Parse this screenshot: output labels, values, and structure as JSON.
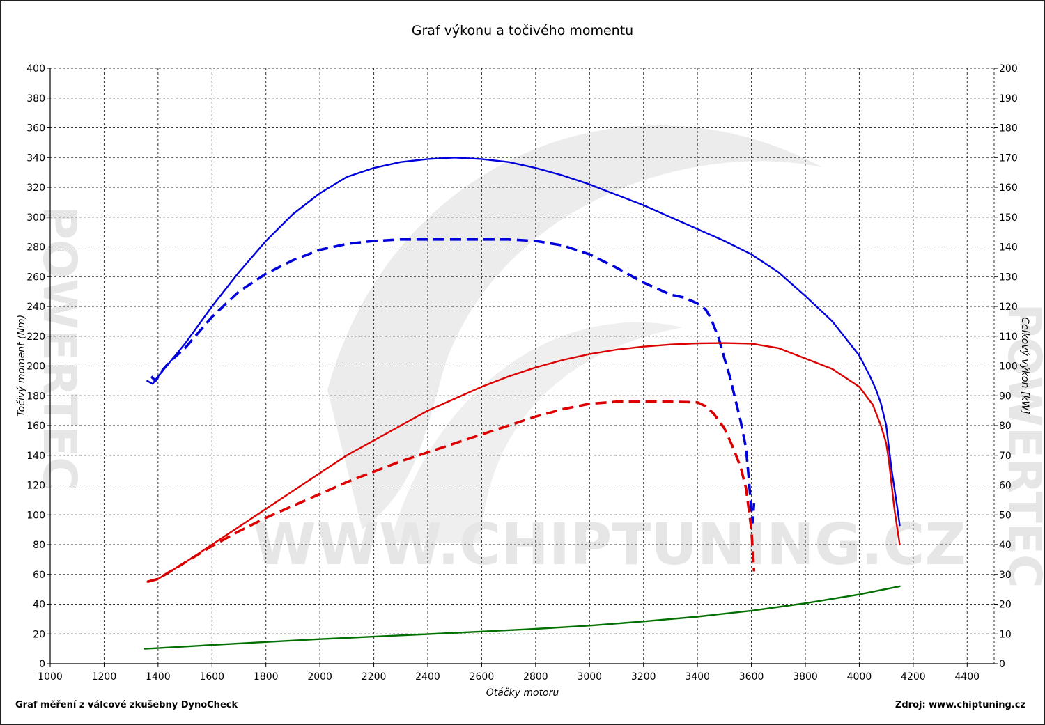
{
  "title": "Graf výkonu a točivého momentu",
  "footer_left": "Graf měření z válcové zkušebny DynoCheck",
  "footer_right": "Zdroj: www.chiptuning.cz",
  "watermark": {
    "center": "WWW.CHIPTUNING.CZ",
    "side": "POWERTEC"
  },
  "chart_data": {
    "type": "line",
    "title": "Graf výkonu a točivého momentu",
    "xlabel": "Otáčky motoru",
    "ylabel_left": "Točivý moment (Nm)",
    "ylabel_right": "Celkový výkon [kW]",
    "xlim": [
      1000,
      4500
    ],
    "ylim_left": [
      0,
      400
    ],
    "ylim_right": [
      0,
      200
    ],
    "x_ticks": [
      1000,
      1200,
      1400,
      1600,
      1800,
      2000,
      2200,
      2400,
      2600,
      2800,
      3000,
      3200,
      3400,
      3600,
      3800,
      4000,
      4200,
      4400
    ],
    "y_ticks_left": [
      0,
      20,
      40,
      60,
      80,
      100,
      120,
      140,
      160,
      180,
      200,
      220,
      240,
      260,
      280,
      300,
      320,
      340,
      360,
      380,
      400
    ],
    "y_ticks_right": [
      0,
      10,
      20,
      30,
      40,
      50,
      60,
      70,
      80,
      90,
      100,
      110,
      120,
      130,
      140,
      150,
      160,
      170,
      180,
      190,
      200
    ],
    "grid": true,
    "series": [
      {
        "color": "#0000dd",
        "style": "solid",
        "axis": "left",
        "x": [
          1360,
          1380,
          1400,
          1450,
          1500,
          1600,
          1700,
          1800,
          1900,
          2000,
          2100,
          2200,
          2300,
          2400,
          2500,
          2600,
          2700,
          2800,
          2900,
          3000,
          3100,
          3200,
          3300,
          3400,
          3500,
          3600,
          3700,
          3800,
          3900,
          4000,
          4040,
          4060,
          4080,
          4100,
          4110,
          4120,
          4130,
          4140,
          4150
        ],
        "y": [
          190,
          188,
          193,
          204,
          215,
          240,
          263,
          284,
          302,
          316,
          327,
          333,
          337,
          339,
          340,
          339,
          337,
          333,
          328,
          322,
          315,
          308,
          300,
          292,
          284,
          275,
          263,
          247,
          230,
          207,
          193,
          185,
          175,
          160,
          145,
          130,
          118,
          106,
          93
        ]
      },
      {
        "color": "#0000dd",
        "style": "dashed",
        "axis": "left",
        "x": [
          1375,
          1390,
          1420,
          1450,
          1500,
          1600,
          1700,
          1800,
          1900,
          2000,
          2100,
          2200,
          2300,
          2400,
          2500,
          2600,
          2700,
          2800,
          2900,
          3000,
          3100,
          3200,
          3300,
          3350,
          3400,
          3430,
          3450,
          3480,
          3500,
          3520,
          3540,
          3560,
          3580,
          3590,
          3600,
          3605,
          3610
        ],
        "y": [
          193,
          190,
          198,
          204,
          212,
          233,
          250,
          262,
          271,
          278,
          282,
          284,
          285,
          285,
          285,
          285,
          285,
          284,
          281,
          275,
          266,
          256,
          248,
          246,
          242,
          238,
          232,
          218,
          205,
          193,
          178,
          163,
          145,
          125,
          103,
          95,
          108
        ]
      },
      {
        "color": "#dd0000",
        "style": "solid",
        "axis": "right",
        "x": [
          1360,
          1400,
          1500,
          1600,
          1700,
          1800,
          1900,
          2000,
          2100,
          2200,
          2300,
          2400,
          2500,
          2600,
          2700,
          2800,
          2900,
          3000,
          3100,
          3200,
          3300,
          3400,
          3500,
          3600,
          3700,
          3800,
          3900,
          4000,
          4050,
          4080,
          4100,
          4110,
          4120,
          4130,
          4140,
          4150
        ],
        "y": [
          27.5,
          28.5,
          34,
          40,
          46,
          52,
          58,
          64,
          70,
          75,
          80,
          85,
          89,
          93,
          96.5,
          99.5,
          102,
          104,
          105.5,
          106.5,
          107.2,
          107.6,
          107.7,
          107.5,
          106,
          102.5,
          99,
          93,
          87,
          80,
          74,
          68,
          60,
          52,
          46,
          40
        ]
      },
      {
        "color": "#dd0000",
        "style": "dashed",
        "axis": "right",
        "x": [
          1360,
          1400,
          1500,
          1600,
          1700,
          1800,
          1900,
          2000,
          2100,
          2200,
          2300,
          2400,
          2500,
          2600,
          2700,
          2800,
          2900,
          3000,
          3100,
          3200,
          3300,
          3400,
          3430,
          3460,
          3500,
          3530,
          3560,
          3580,
          3590,
          3600,
          3605,
          3610
        ],
        "y": [
          27.5,
          28.5,
          34,
          39.5,
          44.5,
          49,
          53,
          57,
          61,
          64.5,
          68,
          71,
          74,
          77,
          80,
          83,
          85.5,
          87.3,
          88,
          88,
          88,
          87.8,
          86.5,
          84,
          79,
          73,
          66,
          59,
          52,
          45,
          38,
          31
        ]
      },
      {
        "color": "#007000",
        "style": "solid",
        "axis": "left",
        "x": [
          1350,
          1400,
          1600,
          1800,
          2000,
          2200,
          2400,
          2600,
          2800,
          3000,
          3200,
          3400,
          3600,
          3800,
          4000,
          4150
        ],
        "y": [
          10,
          10.5,
          12.6,
          14.6,
          16.5,
          18.2,
          19.9,
          21.6,
          23.4,
          25.6,
          28.4,
          31.6,
          35.6,
          40.6,
          46.5,
          52
        ]
      }
    ]
  }
}
